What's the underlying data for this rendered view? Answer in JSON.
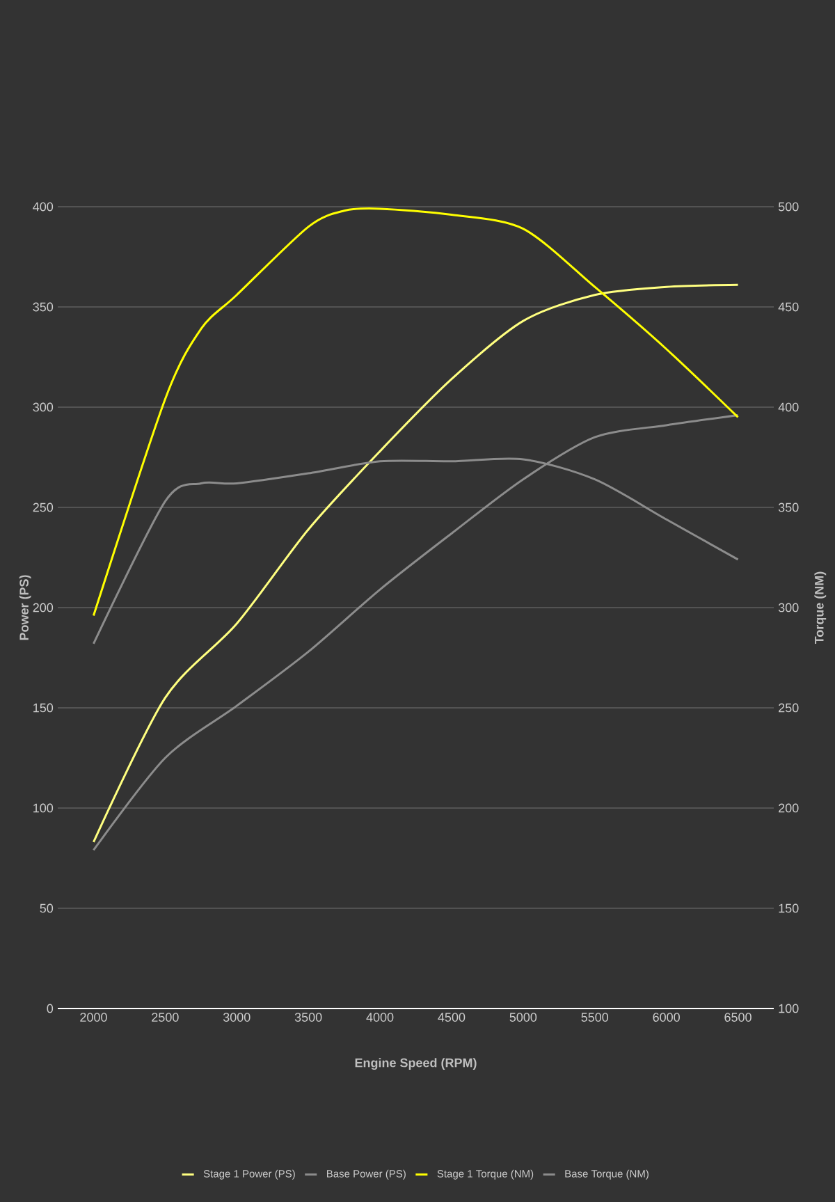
{
  "chart_data": {
    "type": "line",
    "xlabel": "Engine Speed (RPM)",
    "ylabel": "Power (PS)",
    "y2label": "Torque (NM)",
    "xlim": [
      1750,
      6750
    ],
    "xticks": [
      2000,
      2500,
      3000,
      3500,
      4000,
      4500,
      5000,
      5500,
      6000,
      6500
    ],
    "ylim": [
      0,
      400
    ],
    "yticks": [
      0,
      50,
      100,
      150,
      200,
      250,
      300,
      350,
      400
    ],
    "y2lim": [
      100,
      500
    ],
    "y2ticks": [
      100,
      150,
      200,
      250,
      300,
      350,
      400,
      450,
      500
    ],
    "grid": "y",
    "legend": "bottom",
    "marker": "none",
    "line_style": "solid",
    "series": [
      {
        "name": "Stage 1 Power (PS)",
        "color": "#ffff80",
        "x": [
          2000,
          2500,
          3000,
          3500,
          4000,
          4500,
          5000,
          5500,
          6000,
          6500
        ],
        "values": [
          83,
          155,
          192,
          239,
          278,
          314,
          343,
          356,
          360,
          361
        ]
      },
      {
        "name": "Base Power (PS)",
        "color": "#8c8c8c",
        "x": [
          2000,
          2500,
          3000,
          3500,
          4000,
          4500,
          5000,
          5500,
          6000,
          6500
        ],
        "values": [
          79,
          125,
          151,
          178,
          209,
          237,
          264,
          285,
          291,
          296
        ]
      },
      {
        "name": "Stage 1 Torque (NM)",
        "color": "#ffff00",
        "axis": "y2",
        "x": [
          2000,
          2500,
          2750,
          3000,
          3500,
          3750,
          4000,
          4500,
          5000,
          5500,
          6000,
          6500
        ],
        "values": [
          296,
          404,
          439,
          456,
          490,
          498,
          499,
          496,
          489,
          460,
          429,
          395
        ]
      },
      {
        "name": "Base Torque (NM)",
        "color": "#8c8c8c",
        "axis": "y2",
        "x": [
          2000,
          2500,
          2750,
          3000,
          3500,
          4000,
          4500,
          5000,
          5500,
          6000,
          6500
        ],
        "values": [
          282,
          353,
          362,
          362,
          367,
          373,
          373,
          374,
          364,
          344,
          324
        ]
      }
    ]
  }
}
